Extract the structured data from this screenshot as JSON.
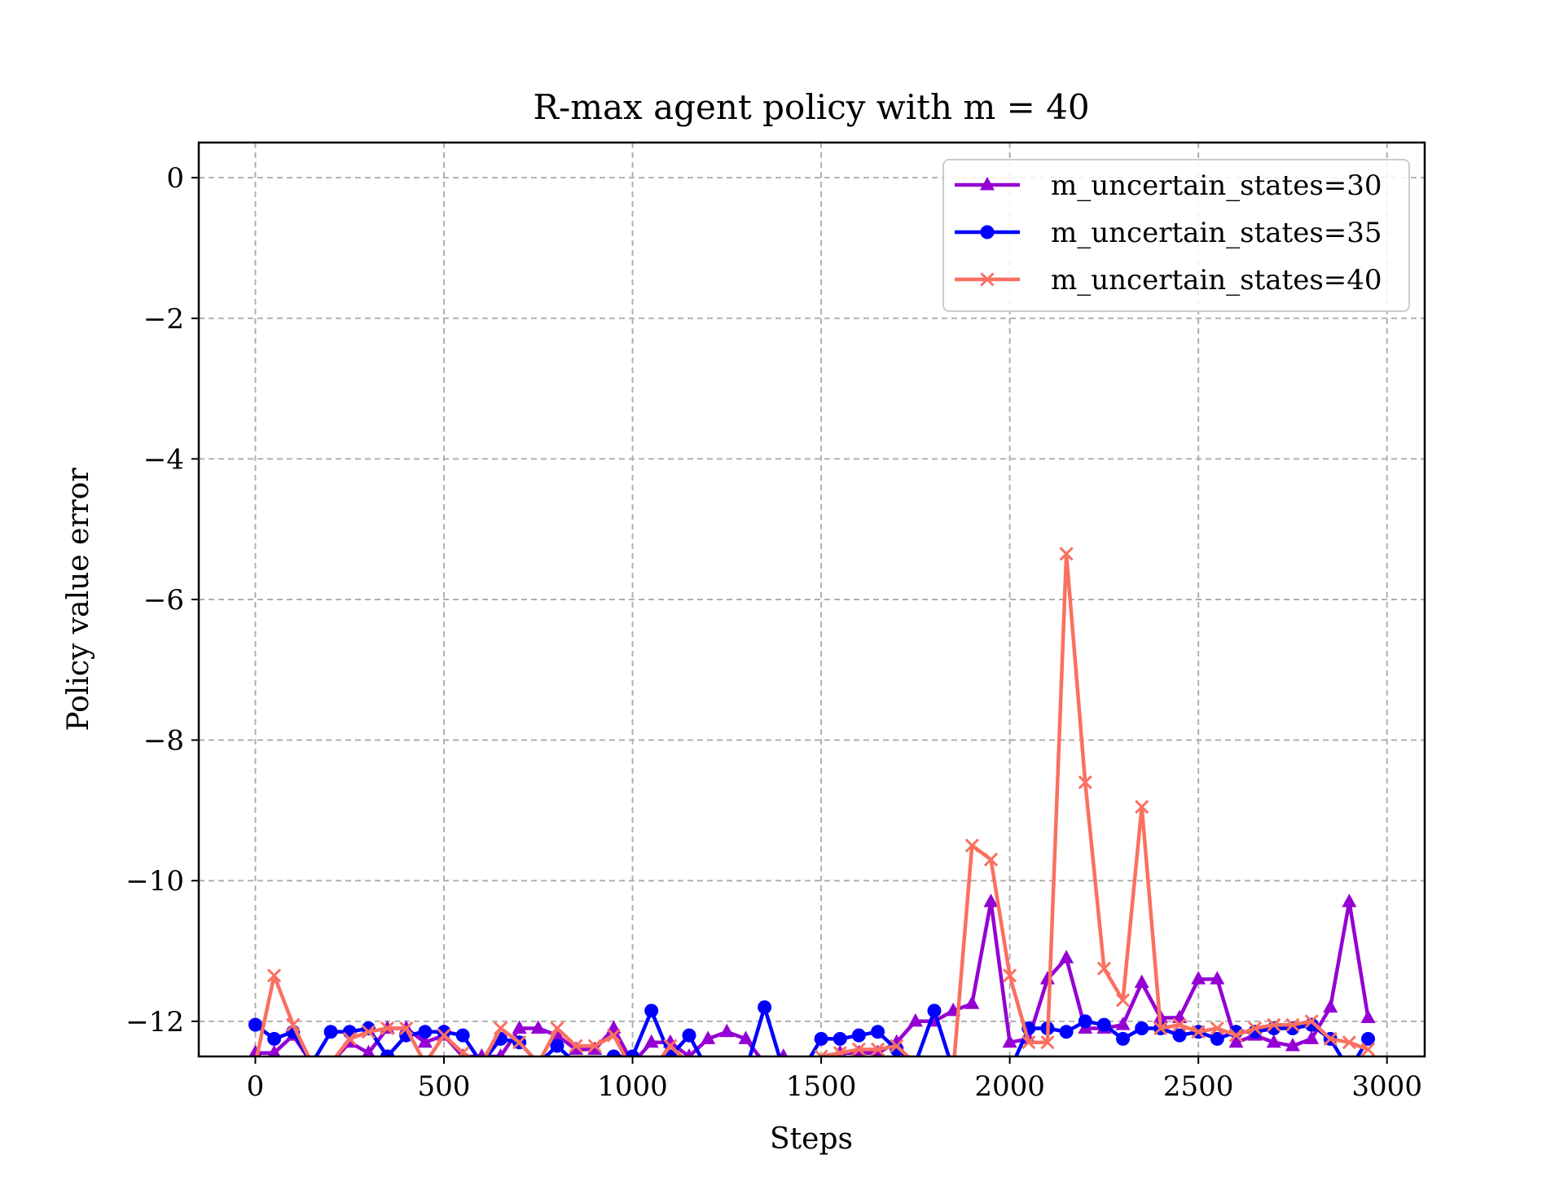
{
  "chart_data": {
    "type": "line",
    "title": "R-max agent policy with m = 40",
    "xlabel": "Steps",
    "ylabel": "Policy value error",
    "xlim": [
      -150,
      3100
    ],
    "ylim": [
      -12.5,
      0.5
    ],
    "xticks": [
      0,
      500,
      1000,
      1500,
      2000,
      2500,
      3000
    ],
    "xtick_labels": [
      "0",
      "500",
      "1000",
      "1500",
      "2000",
      "2500",
      "3000"
    ],
    "yticks": [
      0,
      -2,
      -4,
      -6,
      -8,
      -10,
      -12
    ],
    "ytick_labels": [
      "0",
      "−2",
      "−4",
      "−6",
      "−8",
      "−10",
      "−12"
    ],
    "grid": true,
    "legend_position": "top-right",
    "x": [
      0,
      50,
      100,
      150,
      200,
      250,
      300,
      350,
      400,
      450,
      500,
      550,
      600,
      650,
      700,
      750,
      800,
      850,
      900,
      950,
      1000,
      1050,
      1100,
      1150,
      1200,
      1250,
      1300,
      1350,
      1400,
      1450,
      1500,
      1550,
      1600,
      1650,
      1700,
      1750,
      1800,
      1850,
      1900,
      1950,
      2000,
      2050,
      2100,
      2150,
      2200,
      2250,
      2300,
      2350,
      2400,
      2450,
      2500,
      2550,
      2600,
      2650,
      2700,
      2750,
      2800,
      2850,
      2900,
      2950
    ],
    "series": [
      {
        "name": "m_uncertain_states=30",
        "color": "#9400d3",
        "marker": "triangle",
        "values": [
          -12.45,
          -12.45,
          -12.2,
          -12.6,
          -12.6,
          -12.3,
          -12.45,
          -12.1,
          -12.1,
          -12.3,
          -12.2,
          -12.5,
          -12.5,
          -12.5,
          -12.1,
          -12.1,
          -12.2,
          -12.4,
          -12.4,
          -12.1,
          -12.6,
          -12.3,
          -12.3,
          -12.5,
          -12.25,
          -12.15,
          -12.25,
          -12.6,
          -12.5,
          -12.6,
          -12.6,
          -12.45,
          -12.45,
          -12.45,
          -12.3,
          -12.0,
          -12.0,
          -11.85,
          -11.75,
          -10.3,
          -12.3,
          -12.25,
          -11.4,
          -11.1,
          -12.1,
          -12.1,
          -12.05,
          -11.45,
          -11.95,
          -11.95,
          -11.4,
          -11.4,
          -12.3,
          -12.2,
          -12.3,
          -12.35,
          -12.25,
          -11.8,
          -10.3,
          -11.95
        ]
      },
      {
        "name": "m_uncertain_states=35",
        "color": "#0000ff",
        "marker": "circle",
        "values": [
          -12.05,
          -12.25,
          -12.15,
          -12.6,
          -12.15,
          -12.15,
          -12.1,
          -12.5,
          -12.2,
          -12.15,
          -12.15,
          -12.2,
          -12.6,
          -12.25,
          -12.3,
          -12.6,
          -12.35,
          -12.6,
          -12.6,
          -12.5,
          -12.5,
          -11.85,
          -12.5,
          -12.2,
          -12.7,
          -12.7,
          -12.7,
          -11.8,
          -12.7,
          -12.7,
          -12.25,
          -12.25,
          -12.2,
          -12.15,
          -12.4,
          -12.6,
          -11.85,
          -12.7,
          -12.7,
          -12.7,
          -12.7,
          -12.1,
          -12.1,
          -12.15,
          -12.0,
          -12.05,
          -12.25,
          -12.1,
          -12.1,
          -12.2,
          -12.15,
          -12.25,
          -12.15,
          -12.15,
          -12.1,
          -12.1,
          -12.05,
          -12.25,
          -12.7,
          -12.25
        ]
      },
      {
        "name": "m_uncertain_states=40",
        "color": "#fa7060",
        "marker": "x",
        "values": [
          -12.6,
          -11.35,
          -12.05,
          -12.6,
          -12.6,
          -12.25,
          -12.15,
          -12.1,
          -12.1,
          -12.6,
          -12.2,
          -12.45,
          -12.6,
          -12.1,
          -12.3,
          -12.6,
          -12.1,
          -12.35,
          -12.35,
          -12.2,
          -12.7,
          -12.7,
          -12.35,
          -12.6,
          -12.6,
          -12.7,
          -12.7,
          -12.7,
          -12.7,
          -12.7,
          -12.5,
          -12.45,
          -12.4,
          -12.4,
          -12.35,
          -12.6,
          -12.6,
          -12.7,
          -9.5,
          -9.7,
          -11.35,
          -12.3,
          -12.3,
          -5.35,
          -8.6,
          -11.25,
          -11.7,
          -8.95,
          -12.1,
          -12.05,
          -12.15,
          -12.1,
          -12.2,
          -12.1,
          -12.05,
          -12.05,
          -12.0,
          -12.25,
          -12.3,
          -12.4
        ]
      }
    ]
  }
}
